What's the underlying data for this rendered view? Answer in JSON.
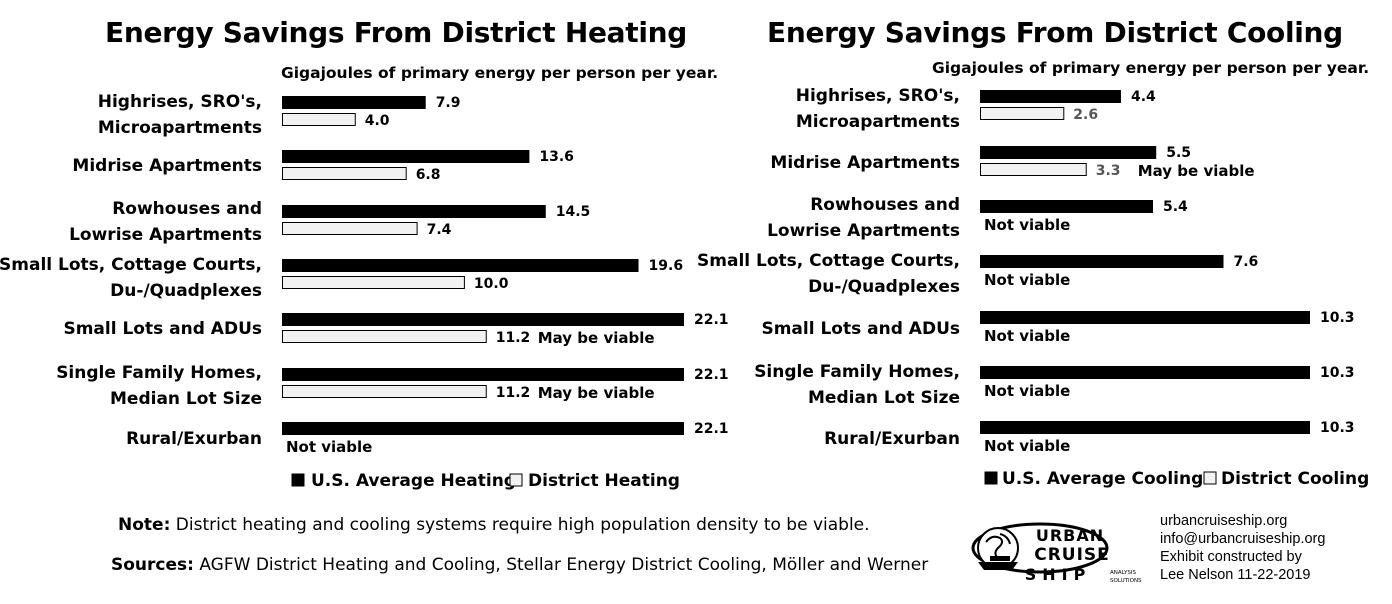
{
  "chart_data": [
    {
      "type": "bar",
      "orientation": "horizontal",
      "title": "Energy Savings From District Heating",
      "subtitle": "Gigajoules of primary energy per person per year.",
      "categories": [
        [
          "Highrises, SRO's,",
          "Microapartments"
        ],
        [
          "Midrise Apartments"
        ],
        [
          "Rowhouses and",
          "Lowrise Apartments"
        ],
        [
          "Small Lots, Cottage Courts,",
          "Du-/Quadplexes"
        ],
        [
          "Small Lots and ADUs"
        ],
        [
          "Single Family Homes,",
          "Median Lot Size"
        ],
        [
          "Rural/Exurban"
        ]
      ],
      "series": [
        {
          "name": "U.S. Average Heating",
          "color": "#000000",
          "values": [
            7.9,
            13.6,
            14.5,
            19.6,
            22.1,
            22.1,
            22.1
          ],
          "labels": [
            "7.9",
            "13.6",
            "14.5",
            "19.6",
            "22.1",
            "22.1",
            "22.1"
          ]
        },
        {
          "name": "District Heating",
          "color": "#f2f2f2",
          "values": [
            4.0,
            6.8,
            7.4,
            10.0,
            11.2,
            11.2,
            null
          ],
          "labels": [
            "4.0",
            "6.8",
            "7.4",
            "10.0",
            "11.2",
            "11.2",
            null
          ]
        }
      ],
      "annotations": [
        "",
        "",
        "",
        "",
        "May be viable",
        "May be viable",
        "Not viable"
      ],
      "xlim": [
        0,
        22.1
      ],
      "legend": "bottom"
    },
    {
      "type": "bar",
      "orientation": "horizontal",
      "title": "Energy Savings From District Cooling",
      "subtitle": "Gigajoules of primary energy per person per year.",
      "categories": [
        [
          "Highrises, SRO's,",
          "Microapartments"
        ],
        [
          "Midrise Apartments"
        ],
        [
          "Rowhouses and",
          "Lowrise Apartments"
        ],
        [
          "Small Lots, Cottage Courts,",
          "Du-/Quadplexes"
        ],
        [
          "Small Lots and ADUs"
        ],
        [
          "Single Family Homes,",
          "Median Lot Size"
        ],
        [
          "Rural/Exurban"
        ]
      ],
      "series": [
        {
          "name": "U.S. Average Cooling",
          "color": "#000000",
          "values": [
            4.4,
            5.5,
            5.4,
            7.6,
            10.3,
            10.3,
            10.3
          ],
          "labels": [
            "4.4",
            "5.5",
            "5.4",
            "7.6",
            "10.3",
            "10.3",
            "10.3"
          ]
        },
        {
          "name": "District Cooling",
          "color": "#f2f2f2",
          "values": [
            2.6,
            3.3,
            null,
            null,
            null,
            null,
            null
          ],
          "labels": [
            "2.6",
            "3.3",
            null,
            null,
            null,
            null,
            null
          ]
        }
      ],
      "annotations": [
        "",
        "May be viable",
        "Not viable",
        "Not viable",
        "Not viable",
        "Not viable",
        "Not viable"
      ],
      "xlim": [
        0,
        10.3
      ],
      "legend": "bottom"
    }
  ],
  "footer": {
    "note_label": "Note:",
    "note_text": " District heating and cooling systems require high population density to be viable.",
    "sources_label": "Sources:",
    "sources_text": " AGFW District Heating and Cooling, Stellar Energy District Cooling, Möller and Werner"
  },
  "contact": {
    "website": "urbancruiseship.org",
    "email": "info@urbancruiseship.org",
    "credit_line1": "Exhibit constructed by",
    "credit_line2": "Lee Nelson 11-22-2019"
  },
  "logo": {
    "line1": "URBAN",
    "line2": "CRUISE",
    "line3": "SHIP",
    "tagline_1": "ANALYSIS",
    "tagline_2": "SOLUTIONS",
    "icon": "cruise-ship-globe-logo-icon"
  }
}
